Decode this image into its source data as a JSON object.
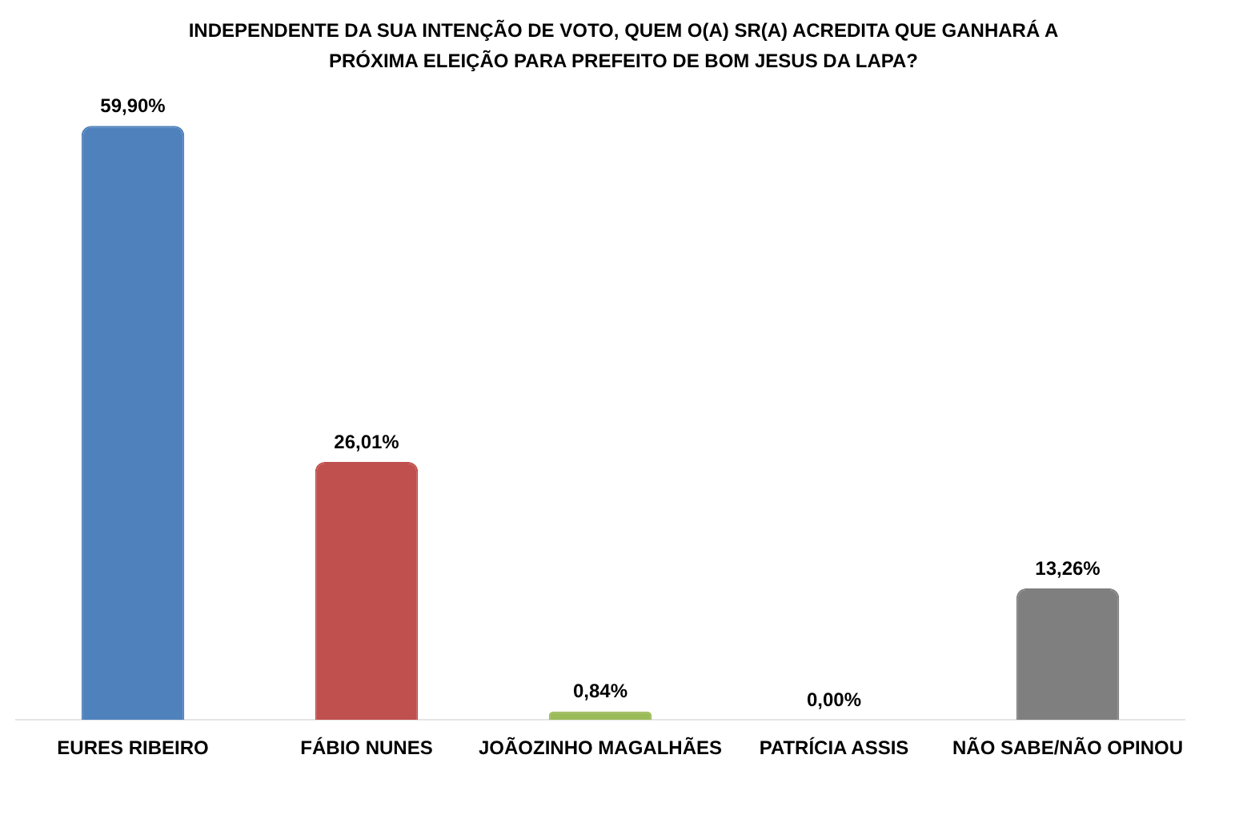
{
  "chart_data": {
    "type": "bar",
    "title": "INDEPENDENTE DA SUA INTENÇÃO DE VOTO, QUEM O(A) SR(A) ACREDITA QUE GANHARÁ A PRÓXIMA ELEIÇÃO PARA PREFEITO DE BOM JESUS DA LAPA?",
    "categories": [
      "EURES RIBEIRO",
      "FÁBIO NUNES",
      "JOÃOZINHO MAGALHÃES",
      "PATRÍCIA ASSIS",
      "NÃO SABE/NÃO OPINOU"
    ],
    "values": [
      59.9,
      26.01,
      0.84,
      0.0,
      13.26
    ],
    "value_labels": [
      "59,90%",
      "26,01%",
      "0,84%",
      "0,00%",
      "13,26%"
    ],
    "colors": [
      "#4f81bd",
      "#c0504d",
      "#9bbb59",
      "#8064a2",
      "#7f7f7f"
    ],
    "grid": false,
    "legend": false
  }
}
